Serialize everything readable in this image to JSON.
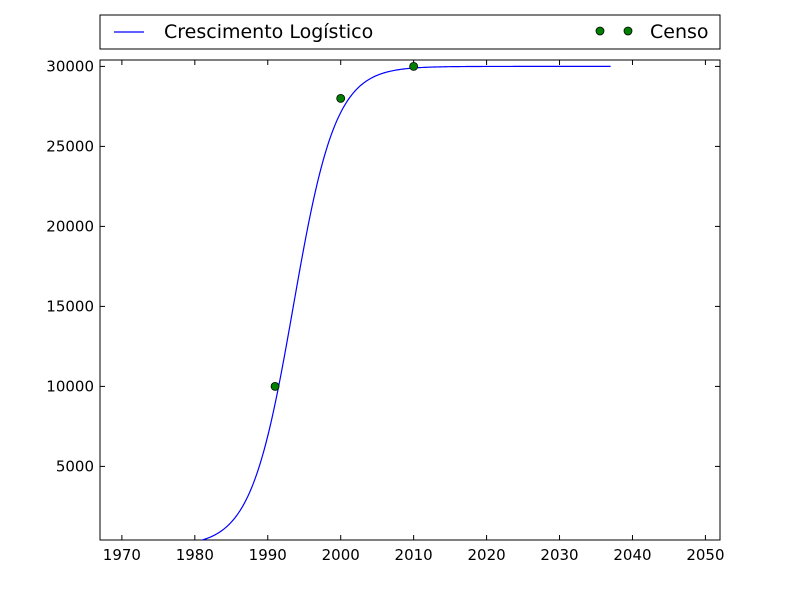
{
  "chart_data": {
    "type": "line",
    "title": "",
    "xlabel": "",
    "ylabel": "",
    "xlim": [
      1967,
      2052
    ],
    "ylim": [
      400,
      30400
    ],
    "x_ticks": [
      1970,
      1980,
      1990,
      2000,
      2010,
      2020,
      2030,
      2040,
      2050
    ],
    "y_ticks": [
      5000,
      10000,
      15000,
      20000,
      25000,
      30000
    ],
    "grid": false,
    "legend_position": "top",
    "series": [
      {
        "name": "Crescimento Logístico",
        "kind": "line",
        "color": "#0000ff",
        "model": "logistic",
        "capacity": 30000,
        "midpoint_year": 1993.5,
        "growth_rate": 0.345,
        "x_range": [
          1981,
          2037
        ]
      },
      {
        "name": "Censo",
        "kind": "scatter",
        "color": "#008000",
        "points": [
          {
            "x": 1991,
            "y": 10000
          },
          {
            "x": 2000,
            "y": 28000
          },
          {
            "x": 2010,
            "y": 30000
          }
        ]
      }
    ]
  }
}
